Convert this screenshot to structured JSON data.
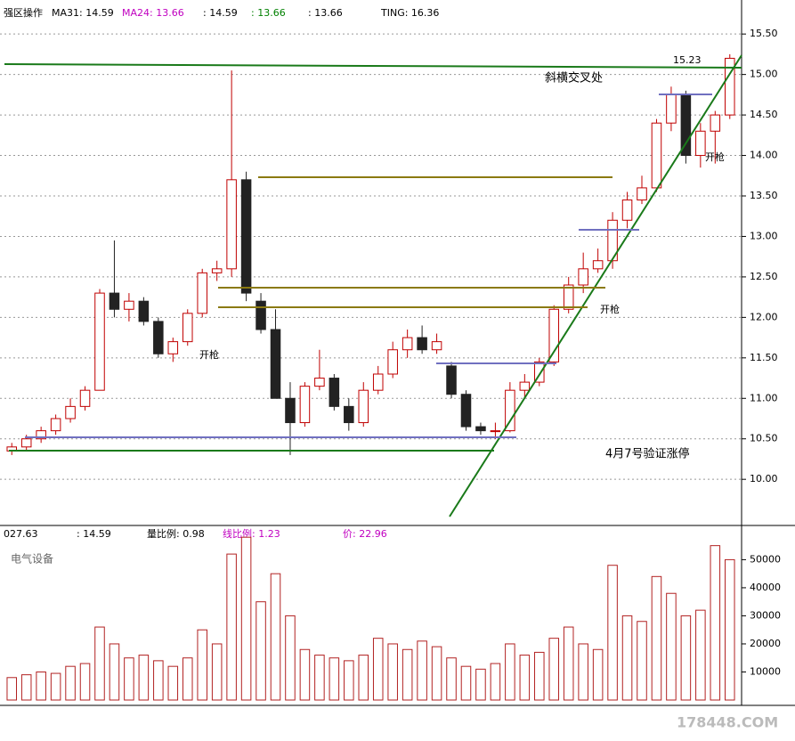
{
  "chart_data": [
    {
      "type": "candlestick",
      "header": [
        "强区操作",
        "MA31: 14.59",
        "MA24: 13.66",
        ": 14.59",
        ": 13.66",
        ": 13.66",
        "TING: 16.36"
      ],
      "annotations": [
        "斜横交叉处",
        "4月7号验证涨停",
        "15.23",
        "开枪"
      ],
      "up_color": "#c00000",
      "down_color": "#222222",
      "ylim": [
        9.43,
        15.92
      ],
      "yticks": [
        {
          "value": 10.0,
          "label": "10.00"
        },
        {
          "value": 10.5,
          "label": "10.50"
        },
        {
          "value": 11.0,
          "label": "11.00"
        },
        {
          "value": 11.5,
          "label": "11.50"
        },
        {
          "value": 12.0,
          "label": "12.00"
        },
        {
          "value": 12.5,
          "label": "12.50"
        },
        {
          "value": 13.0,
          "label": "13.00"
        },
        {
          "value": 13.5,
          "label": "13.50"
        },
        {
          "value": 14.0,
          "label": "14.00"
        },
        {
          "value": 14.5,
          "label": "14.50"
        },
        {
          "value": 15.0,
          "label": "15.00"
        },
        {
          "value": 15.5,
          "label": "15.50"
        }
      ],
      "grid": true,
      "open": [
        10.35,
        10.4,
        10.5,
        10.6,
        10.75,
        10.9,
        11.1,
        12.3,
        12.1,
        12.2,
        11.95,
        11.55,
        11.7,
        12.05,
        12.55,
        12.6,
        13.7,
        12.2,
        11.85,
        11.0,
        10.7,
        11.15,
        11.25,
        10.9,
        10.7,
        11.1,
        11.3,
        11.6,
        11.75,
        11.6,
        11.4,
        11.05,
        10.65,
        10.6,
        10.6,
        11.1,
        11.2,
        11.45,
        12.1,
        12.4,
        12.6,
        12.7,
        13.2,
        13.45,
        13.6,
        14.4,
        14.75,
        14.0,
        14.3,
        14.5
      ],
      "high": [
        10.45,
        10.55,
        10.65,
        10.8,
        11.0,
        11.15,
        12.35,
        12.95,
        12.3,
        12.25,
        12.0,
        11.75,
        12.1,
        12.6,
        12.7,
        15.05,
        13.8,
        12.3,
        12.1,
        11.2,
        11.2,
        11.6,
        11.3,
        11.0,
        11.2,
        11.4,
        11.7,
        11.85,
        11.9,
        11.8,
        11.45,
        11.1,
        10.7,
        10.7,
        11.2,
        11.3,
        11.5,
        12.15,
        12.5,
        12.8,
        12.85,
        13.3,
        13.55,
        13.75,
        14.45,
        14.85,
        14.8,
        14.4,
        14.55,
        15.25
      ],
      "low": [
        10.3,
        10.35,
        10.45,
        10.55,
        10.7,
        10.85,
        11.1,
        12.0,
        11.95,
        11.9,
        11.5,
        11.45,
        11.65,
        12.0,
        12.45,
        12.5,
        12.2,
        11.8,
        11.0,
        10.3,
        10.65,
        11.1,
        10.85,
        10.6,
        10.65,
        11.05,
        11.25,
        11.5,
        11.55,
        11.55,
        11.0,
        10.6,
        10.55,
        10.5,
        10.58,
        11.0,
        11.15,
        11.4,
        12.05,
        12.3,
        12.55,
        12.6,
        13.1,
        13.4,
        13.55,
        14.3,
        13.9,
        13.85,
        13.9,
        14.45
      ],
      "close": [
        10.4,
        10.5,
        10.6,
        10.75,
        10.9,
        11.1,
        12.3,
        12.1,
        12.2,
        11.95,
        11.55,
        11.7,
        12.05,
        12.55,
        12.6,
        13.7,
        12.3,
        11.85,
        11.0,
        10.7,
        11.15,
        11.25,
        10.9,
        10.7,
        11.1,
        11.3,
        11.6,
        11.75,
        11.6,
        11.7,
        11.05,
        10.65,
        10.6,
        10.6,
        11.1,
        11.2,
        11.45,
        12.1,
        12.4,
        12.6,
        12.7,
        13.2,
        13.45,
        13.6,
        14.4,
        14.75,
        14.0,
        14.3,
        14.5,
        15.2
      ]
    },
    {
      "type": "bar",
      "header": [
        "027.63",
        ": 14.59",
        "量比例: 0.98",
        "线比例: 1.23",
        "价: 22.96"
      ],
      "subtitle": "电气设备",
      "watermark": "178448.COM",
      "color": "#b22222",
      "ylim": [
        0,
        60600
      ],
      "yticks": [
        10000,
        20000,
        30000,
        40000,
        50000
      ],
      "values": [
        8000,
        9000,
        10000,
        9500,
        12000,
        13000,
        26000,
        20000,
        15000,
        16000,
        14000,
        12000,
        15000,
        25000,
        20000,
        52000,
        58000,
        35000,
        45000,
        30000,
        18000,
        16000,
        15000,
        14000,
        16000,
        22000,
        20000,
        18000,
        21000,
        19000,
        15000,
        12000,
        11000,
        13000,
        20000,
        16000,
        17000,
        22000,
        26000,
        20000,
        18000,
        48000,
        30000,
        28000,
        44000,
        38000,
        30000,
        32000,
        55000,
        50000
      ]
    }
  ]
}
